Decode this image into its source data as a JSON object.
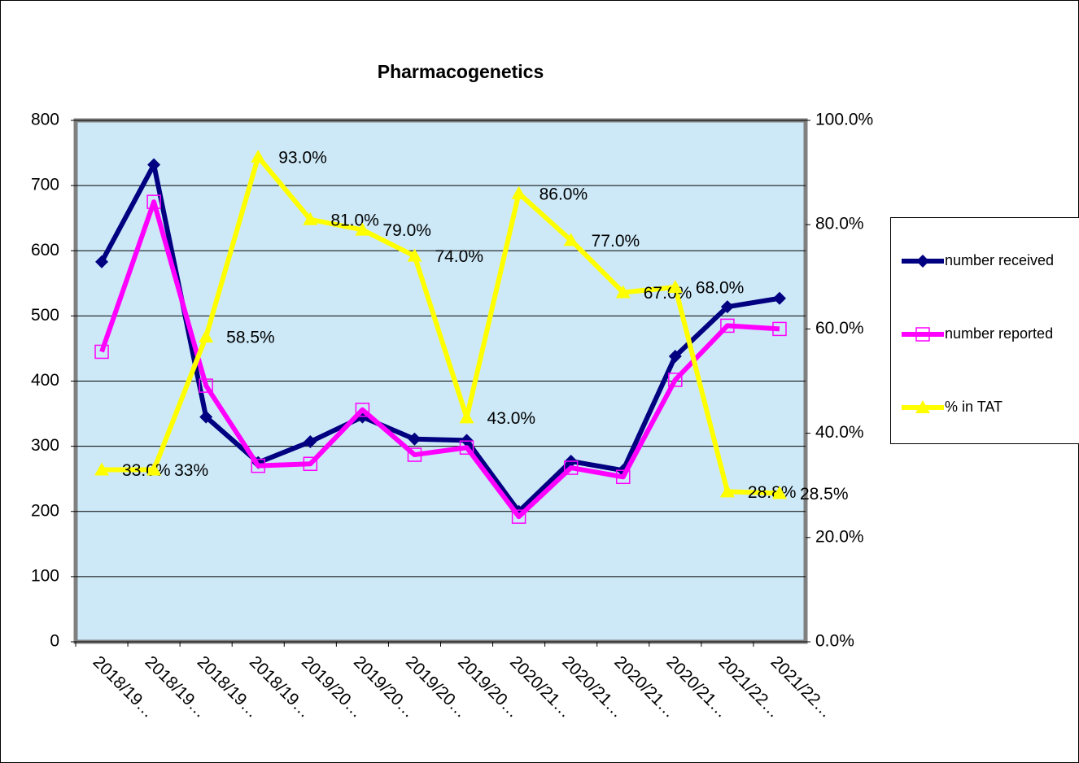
{
  "chart_data": {
    "type": "line",
    "title": "Pharmacogenetics",
    "categories": [
      "2018/19…",
      "2018/19…",
      "2018/19…",
      "2018/19…",
      "2019/20…",
      "2019/20…",
      "2019/20…",
      "2019/20…",
      "2020/21…",
      "2020/21…",
      "2020/21…",
      "2020/21…",
      "2021/22…",
      "2021/22…"
    ],
    "series": [
      {
        "name": "number received",
        "color": "#000080",
        "marker": "diamond",
        "values": [
          583,
          732,
          345,
          275,
          307,
          345,
          311,
          309,
          200,
          277,
          263,
          438,
          514,
          527
        ]
      },
      {
        "name": "number reported",
        "color": "#ff00ff",
        "marker": "square",
        "values": [
          445,
          675,
          393,
          270,
          273,
          356,
          287,
          298,
          192,
          267,
          253,
          402,
          485,
          480
        ]
      },
      {
        "name": "% in TAT",
        "color": "#ffff00",
        "marker": "triangle",
        "axis": "y2",
        "values": [
          33,
          33,
          58.5,
          93,
          81,
          79,
          74,
          43,
          86,
          77,
          67,
          68,
          28.8,
          28.5
        ],
        "value_labels": [
          "33.0%",
          "33%",
          "58.5%",
          "93.0%",
          "81.0%",
          "79.0%",
          "74.0%",
          "43.0%",
          "86.0%",
          "77.0%",
          "67.0%",
          "68.0%",
          "28.8%",
          "28.5%"
        ]
      }
    ],
    "ylim": [
      0,
      800
    ],
    "yticks": [
      0,
      100,
      200,
      300,
      400,
      500,
      600,
      700,
      800
    ],
    "y2lim": [
      0,
      100
    ],
    "y2ticks": [
      {
        "value": 0,
        "label": "0.0%"
      },
      {
        "value": 20,
        "label": "20.0%"
      },
      {
        "value": 40,
        "label": "40.0%"
      },
      {
        "value": 60,
        "label": "60.0%"
      },
      {
        "value": 80,
        "label": "80.0%"
      },
      {
        "value": 100,
        "label": "100.0%"
      }
    ],
    "grid": true,
    "legend": "right"
  }
}
